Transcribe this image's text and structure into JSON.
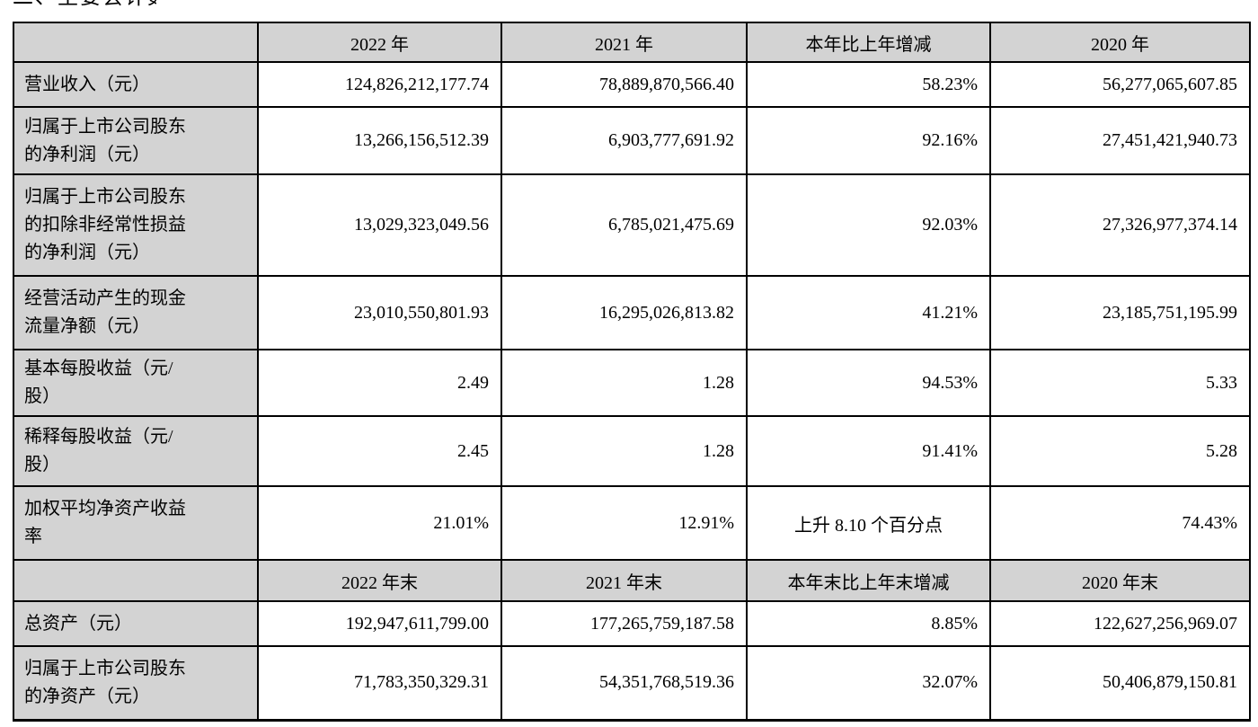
{
  "heading": {
    "clipped_text": "二、主要会计数据"
  },
  "colors": {
    "header_bg": "#d3d3d3",
    "border": "#000000",
    "text": "#000000",
    "page_bg": "#ffffff"
  },
  "table": {
    "annual_header": [
      "",
      "2022 年",
      "2021 年",
      "本年比上年增减",
      "2020 年"
    ],
    "annual_rows": [
      {
        "label": "营业收入（元）",
        "y2022": "124,826,212,177.74",
        "y2021": "78,889,870,566.40",
        "change": "58.23%",
        "y2020": "56,277,065,607.85"
      },
      {
        "label": "归属于上市公司股东\n的净利润（元）",
        "y2022": "13,266,156,512.39",
        "y2021": "6,903,777,691.92",
        "change": "92.16%",
        "y2020": "27,451,421,940.73"
      },
      {
        "label": "归属于上市公司股东\n的扣除非经常性损益\n的净利润（元）",
        "y2022": "13,029,323,049.56",
        "y2021": "6,785,021,475.69",
        "change": "92.03%",
        "y2020": "27,326,977,374.14"
      },
      {
        "label": "经营活动产生的现金\n流量净额（元）",
        "y2022": "23,010,550,801.93",
        "y2021": "16,295,026,813.82",
        "change": "41.21%",
        "y2020": "23,185,751,195.99"
      },
      {
        "label": "基本每股收益（元/\n股）",
        "y2022": "2.49",
        "y2021": "1.28",
        "change": "94.53%",
        "y2020": "5.33"
      },
      {
        "label": "稀释每股收益（元/\n股）",
        "y2022": "2.45",
        "y2021": "1.28",
        "change": "91.41%",
        "y2020": "5.28"
      },
      {
        "label": "加权平均净资产收益\n率",
        "y2022": "21.01%",
        "y2021": "12.91%",
        "change": "上升 8.10 个百分点",
        "y2020": "74.43%"
      }
    ],
    "eoy_header": [
      "",
      "2022 年末",
      "2021 年末",
      "本年末比上年末增减",
      "2020 年末"
    ],
    "eoy_rows": [
      {
        "label": "总资产（元）",
        "y2022": "192,947,611,799.00",
        "y2021": "177,265,759,187.58",
        "change": "8.85%",
        "y2020": "122,627,256,969.07"
      },
      {
        "label": "归属于上市公司股东\n的净资产（元）",
        "y2022": "71,783,350,329.31",
        "y2021": "54,351,768,519.36",
        "change": "32.07%",
        "y2020": "50,406,879,150.81"
      }
    ]
  }
}
